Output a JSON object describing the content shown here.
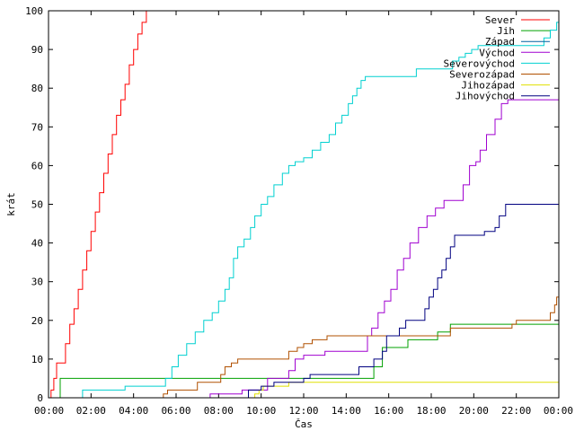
{
  "chart_data": {
    "type": "line",
    "title": "",
    "xlabel": "Čas",
    "ylabel": "krát",
    "xlim": [
      0,
      24
    ],
    "ylim": [
      0,
      100
    ],
    "x_ticks": [
      {
        "v": 0,
        "label": "00:00"
      },
      {
        "v": 2,
        "label": "02:00"
      },
      {
        "v": 4,
        "label": "04:00"
      },
      {
        "v": 6,
        "label": "06:00"
      },
      {
        "v": 8,
        "label": "08:00"
      },
      {
        "v": 10,
        "label": "10:00"
      },
      {
        "v": 12,
        "label": "12:00"
      },
      {
        "v": 14,
        "label": "14:00"
      },
      {
        "v": 16,
        "label": "16:00"
      },
      {
        "v": 18,
        "label": "18:00"
      },
      {
        "v": 20,
        "label": "20:00"
      },
      {
        "v": 22,
        "label": "22:00"
      },
      {
        "v": 24,
        "label": "00:00"
      }
    ],
    "y_ticks": [
      {
        "v": 0,
        "label": "0"
      },
      {
        "v": 10,
        "label": "10"
      },
      {
        "v": 20,
        "label": "20"
      },
      {
        "v": 30,
        "label": "30"
      },
      {
        "v": 40,
        "label": "40"
      },
      {
        "v": 50,
        "label": "50"
      },
      {
        "v": 60,
        "label": "60"
      },
      {
        "v": 70,
        "label": "70"
      },
      {
        "v": 80,
        "label": "80"
      },
      {
        "v": 90,
        "label": "90"
      },
      {
        "v": 100,
        "label": "100"
      }
    ],
    "grid": false,
    "legend_position": "top-right",
    "series": [
      {
        "name": "Sever",
        "color": "#ff0000",
        "points": [
          [
            0,
            0
          ],
          [
            0.12,
            2
          ],
          [
            0.25,
            5
          ],
          [
            0.38,
            9
          ],
          [
            0.6,
            9
          ],
          [
            0.8,
            14
          ],
          [
            1.0,
            19
          ],
          [
            1.2,
            23
          ],
          [
            1.4,
            28
          ],
          [
            1.6,
            33
          ],
          [
            1.8,
            38
          ],
          [
            2.0,
            43
          ],
          [
            2.2,
            48
          ],
          [
            2.4,
            53
          ],
          [
            2.6,
            58
          ],
          [
            2.8,
            63
          ],
          [
            3.0,
            68
          ],
          [
            3.2,
            73
          ],
          [
            3.4,
            77
          ],
          [
            3.6,
            81
          ],
          [
            3.8,
            86
          ],
          [
            4.0,
            90
          ],
          [
            4.2,
            94
          ],
          [
            4.4,
            97
          ],
          [
            4.6,
            100
          ]
        ]
      },
      {
        "name": "Jih",
        "color": "#00a000",
        "points": [
          [
            0,
            0
          ],
          [
            0.45,
            0
          ],
          [
            0.55,
            5
          ],
          [
            13.2,
            5
          ],
          [
            15.2,
            5
          ],
          [
            15.3,
            8
          ],
          [
            15.6,
            8
          ],
          [
            15.7,
            13
          ],
          [
            16.8,
            13
          ],
          [
            16.9,
            15
          ],
          [
            18.2,
            15
          ],
          [
            18.3,
            17
          ],
          [
            18.8,
            17
          ],
          [
            18.9,
            19
          ],
          [
            24,
            19
          ]
        ]
      },
      {
        "name": "Západ",
        "color": "#0060a0",
        "points": [
          [
            0,
            0
          ],
          [
            24,
            0
          ]
        ]
      },
      {
        "name": "Východ",
        "color": "#a000d0",
        "points": [
          [
            0,
            0
          ],
          [
            7.5,
            0
          ],
          [
            7.6,
            1
          ],
          [
            9.0,
            1
          ],
          [
            9.1,
            2
          ],
          [
            10.2,
            2
          ],
          [
            10.3,
            5
          ],
          [
            11.0,
            5
          ],
          [
            11.3,
            7
          ],
          [
            11.6,
            10
          ],
          [
            12.0,
            11
          ],
          [
            13.0,
            12
          ],
          [
            14.8,
            12
          ],
          [
            15.0,
            16
          ],
          [
            15.2,
            18
          ],
          [
            15.5,
            22
          ],
          [
            15.8,
            25
          ],
          [
            16.1,
            28
          ],
          [
            16.4,
            33
          ],
          [
            16.7,
            36
          ],
          [
            17.0,
            40
          ],
          [
            17.4,
            44
          ],
          [
            17.8,
            47
          ],
          [
            18.2,
            49
          ],
          [
            18.6,
            51
          ],
          [
            19.2,
            51
          ],
          [
            19.5,
            55
          ],
          [
            19.8,
            60
          ],
          [
            20.1,
            61
          ],
          [
            20.3,
            64
          ],
          [
            20.6,
            68
          ],
          [
            21.0,
            72
          ],
          [
            21.3,
            76
          ],
          [
            21.6,
            77
          ],
          [
            24,
            77
          ]
        ]
      },
      {
        "name": "Severovýchod",
        "color": "#00d0d0",
        "points": [
          [
            0,
            0
          ],
          [
            1.5,
            0
          ],
          [
            1.6,
            2
          ],
          [
            3.5,
            2
          ],
          [
            3.6,
            3
          ],
          [
            5.3,
            3
          ],
          [
            5.5,
            5
          ],
          [
            5.8,
            8
          ],
          [
            6.1,
            11
          ],
          [
            6.5,
            14
          ],
          [
            6.9,
            17
          ],
          [
            7.3,
            20
          ],
          [
            7.7,
            22
          ],
          [
            8.0,
            25
          ],
          [
            8.3,
            28
          ],
          [
            8.5,
            31
          ],
          [
            8.7,
            36
          ],
          [
            8.9,
            39
          ],
          [
            9.2,
            41
          ],
          [
            9.5,
            44
          ],
          [
            9.7,
            47
          ],
          [
            10.0,
            50
          ],
          [
            10.3,
            52
          ],
          [
            10.6,
            55
          ],
          [
            11.0,
            58
          ],
          [
            11.3,
            60
          ],
          [
            11.6,
            61
          ],
          [
            12.0,
            62
          ],
          [
            12.4,
            64
          ],
          [
            12.8,
            66
          ],
          [
            13.2,
            68
          ],
          [
            13.5,
            71
          ],
          [
            13.8,
            73
          ],
          [
            14.1,
            76
          ],
          [
            14.3,
            78
          ],
          [
            14.5,
            80
          ],
          [
            14.7,
            82
          ],
          [
            14.9,
            83
          ],
          [
            17.2,
            83
          ],
          [
            17.3,
            85
          ],
          [
            18.8,
            85
          ],
          [
            19.0,
            87
          ],
          [
            19.3,
            88
          ],
          [
            19.6,
            89
          ],
          [
            19.9,
            90
          ],
          [
            20.2,
            91
          ],
          [
            23.0,
            91
          ],
          [
            23.3,
            93
          ],
          [
            23.6,
            95
          ],
          [
            23.9,
            97
          ],
          [
            24,
            97
          ]
        ]
      },
      {
        "name": "Severozápad",
        "color": "#b05000",
        "points": [
          [
            0,
            0
          ],
          [
            5.3,
            0
          ],
          [
            5.4,
            1
          ],
          [
            5.6,
            2
          ],
          [
            6.9,
            2
          ],
          [
            7.0,
            4
          ],
          [
            8.0,
            4
          ],
          [
            8.1,
            6
          ],
          [
            8.3,
            8
          ],
          [
            8.6,
            9
          ],
          [
            8.9,
            10
          ],
          [
            11.0,
            10
          ],
          [
            11.3,
            12
          ],
          [
            11.7,
            13
          ],
          [
            12.0,
            14
          ],
          [
            12.4,
            15
          ],
          [
            13.0,
            15
          ],
          [
            13.1,
            16
          ],
          [
            15.0,
            16
          ],
          [
            16.0,
            16
          ],
          [
            18.8,
            16
          ],
          [
            18.9,
            18
          ],
          [
            21.7,
            18
          ],
          [
            21.8,
            19
          ],
          [
            22.0,
            20
          ],
          [
            23.4,
            20
          ],
          [
            23.6,
            22
          ],
          [
            23.8,
            24
          ],
          [
            23.9,
            26
          ],
          [
            24,
            26
          ]
        ]
      },
      {
        "name": "Jihozápad",
        "color": "#e0e000",
        "points": [
          [
            0,
            0
          ],
          [
            9.6,
            0
          ],
          [
            9.7,
            1
          ],
          [
            9.9,
            2
          ],
          [
            10.1,
            3
          ],
          [
            11.0,
            3
          ],
          [
            11.3,
            4
          ],
          [
            24,
            4
          ]
        ]
      },
      {
        "name": "Jihovýchod",
        "color": "#000080",
        "points": [
          [
            0,
            0
          ],
          [
            9.3,
            0
          ],
          [
            9.4,
            2
          ],
          [
            9.8,
            2
          ],
          [
            10.0,
            3
          ],
          [
            10.4,
            3
          ],
          [
            10.6,
            4
          ],
          [
            11.8,
            4
          ],
          [
            12.0,
            5
          ],
          [
            12.3,
            6
          ],
          [
            14.4,
            6
          ],
          [
            14.6,
            8
          ],
          [
            14.9,
            8
          ],
          [
            15.3,
            10
          ],
          [
            15.7,
            12
          ],
          [
            15.9,
            16
          ],
          [
            16.2,
            16
          ],
          [
            16.5,
            18
          ],
          [
            16.8,
            20
          ],
          [
            17.4,
            20
          ],
          [
            17.7,
            23
          ],
          [
            17.9,
            26
          ],
          [
            18.1,
            28
          ],
          [
            18.3,
            31
          ],
          [
            18.5,
            33
          ],
          [
            18.7,
            36
          ],
          [
            18.9,
            39
          ],
          [
            19.1,
            42
          ],
          [
            20.3,
            42
          ],
          [
            20.5,
            43
          ],
          [
            21.0,
            44
          ],
          [
            21.2,
            47
          ],
          [
            21.5,
            50
          ],
          [
            24,
            50
          ]
        ]
      }
    ]
  }
}
